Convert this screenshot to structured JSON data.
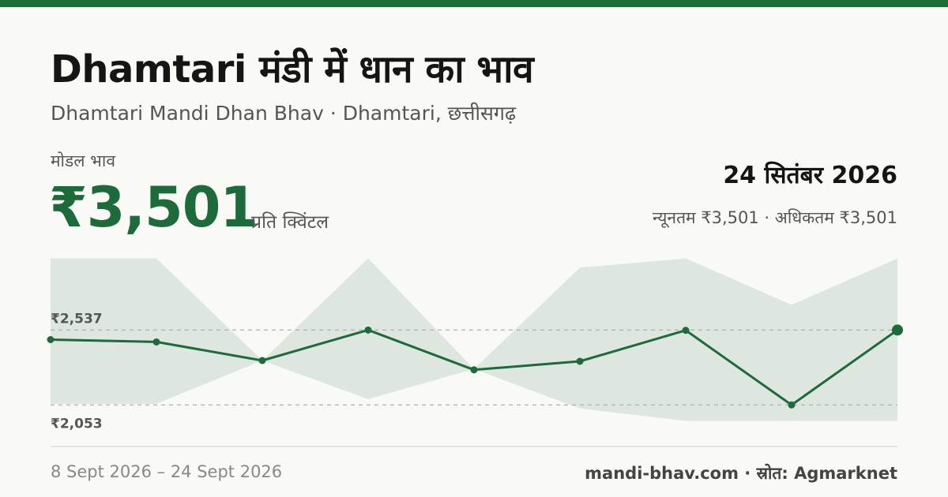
{
  "header": {
    "title": "Dhamtari मंडी में धान का भाव",
    "subtitle": "Dhamtari Mandi Dhan Bhav · Dhamtari, छत्तीसगढ़"
  },
  "price": {
    "label": "मोडल भाव",
    "value": "₹3,501",
    "unit": "प्रति क्विंटल",
    "date": "24 सितंबर 2026",
    "min_max": "न्यूनतम ₹3,501 · अधिकतम ₹3,501"
  },
  "chart_data": {
    "type": "line",
    "series": [
      {
        "values": [
          2475,
          2460,
          2340,
          2537,
          2280,
          2335,
          2535,
          2053,
          2537
        ]
      }
    ],
    "band_high": [
      3000,
      3000,
      2340,
      3000,
      2285,
      2940,
      3000,
      2700,
      3000
    ],
    "band_low": [
      2060,
      2060,
      2340,
      2090,
      2285,
      2030,
      1950,
      1950,
      1950
    ],
    "y_labels": [
      {
        "value": 2537,
        "label": "₹2,537"
      },
      {
        "value": 2053,
        "label": "₹2,053"
      }
    ],
    "ylim": [
      1950,
      3000
    ],
    "grid": false,
    "colors": {
      "line": "#1d6a3a",
      "band": "#dde7e0",
      "ref_line": "#b5b5b5"
    }
  },
  "footer": {
    "date_range": "8 Sept 2026 – 24 Sept 2026",
    "source": "mandi-bhav.com · स्रोत: Agmarknet"
  }
}
